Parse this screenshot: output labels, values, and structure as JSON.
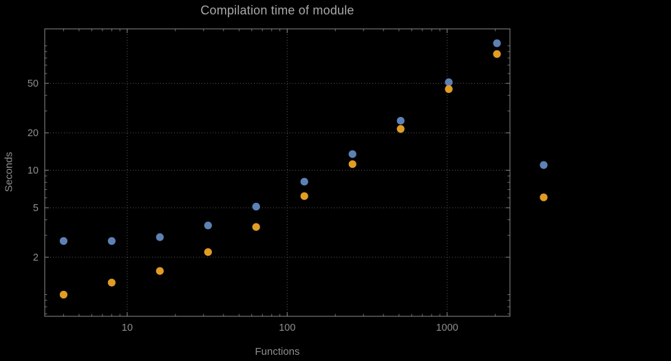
{
  "title": "Compilation time of module",
  "axes": {
    "xlabel": "Functions",
    "ylabel": "Seconds"
  },
  "chart_data": {
    "type": "scatter",
    "title": "Compilation time of module",
    "xlabel": "Functions",
    "ylabel": "Seconds",
    "xscale": "log",
    "yscale": "log",
    "grid": true,
    "xlim": [
      3.05,
      2470
    ],
    "ylim": [
      0.67,
      137
    ],
    "x_ticks": [
      10,
      100,
      1000
    ],
    "y_ticks": [
      2,
      5,
      10,
      20,
      50
    ],
    "x": [
      4,
      8,
      16,
      32,
      64,
      128,
      256,
      512,
      1024,
      2048
    ],
    "series": [
      {
        "name": "series-1-blue",
        "color": "#5E81B5",
        "values": [
          2.7,
          2.7,
          2.9,
          3.6,
          5.1,
          8.1,
          13.5,
          25,
          51,
          105
        ]
      },
      {
        "name": "series-2-orange",
        "color": "#E19C24",
        "values": [
          1.0,
          1.25,
          1.55,
          2.2,
          3.5,
          6.2,
          11.2,
          21.5,
          45,
          86
        ]
      }
    ],
    "legend": {
      "position": "right",
      "labels_visible": false
    }
  },
  "colors": {
    "background": "#000000",
    "frame": "#8c8c8c",
    "grid": "#5e5e5e",
    "tick_label": "#8f8f8f",
    "title": "#a9a9a9",
    "axis_label": "#8f8f8f"
  }
}
